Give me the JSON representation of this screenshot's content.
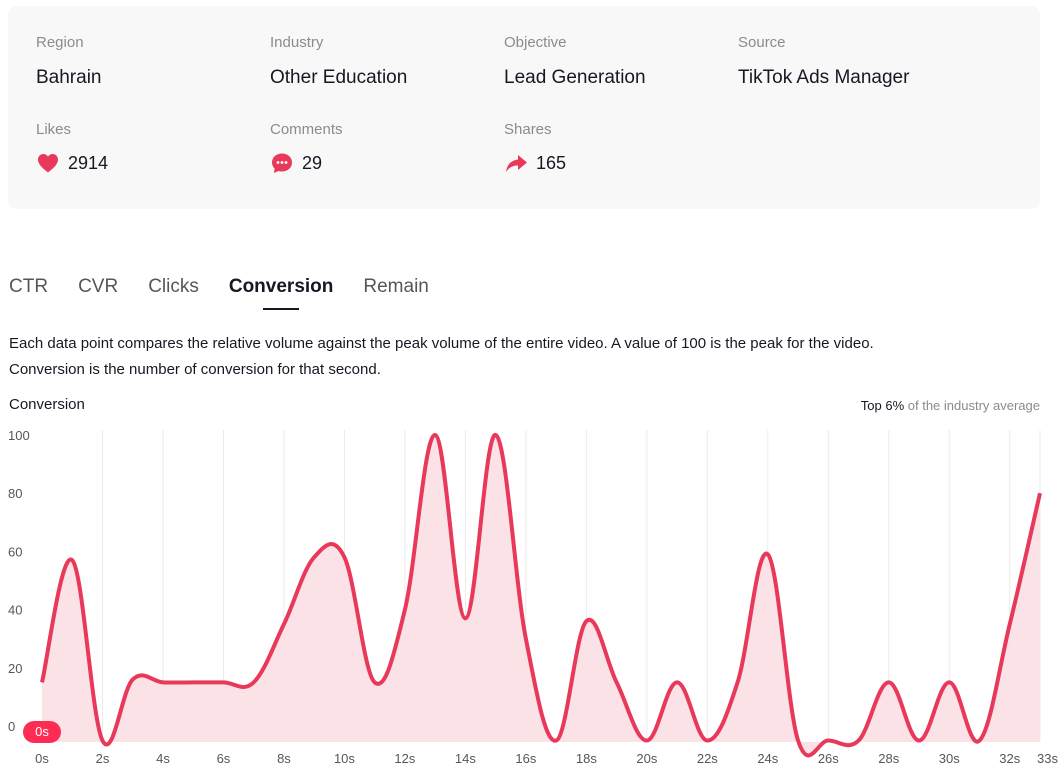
{
  "info": {
    "region": {
      "label": "Region",
      "value": "Bahrain"
    },
    "industry": {
      "label": "Industry",
      "value": "Other Education"
    },
    "objective": {
      "label": "Objective",
      "value": "Lead Generation"
    },
    "source": {
      "label": "Source",
      "value": "TikTok Ads Manager"
    },
    "likes": {
      "label": "Likes",
      "value": "2914",
      "icon": "heart-icon"
    },
    "comments": {
      "label": "Comments",
      "value": "29",
      "icon": "comment-icon"
    },
    "shares": {
      "label": "Shares",
      "value": "165",
      "icon": "share-icon"
    }
  },
  "tabs": [
    {
      "label": "CTR"
    },
    {
      "label": "CVR"
    },
    {
      "label": "Clicks"
    },
    {
      "label": "Conversion",
      "active": true
    },
    {
      "label": "Remain"
    }
  ],
  "description": {
    "line1": "Each data point compares the relative volume against the peak volume of the entire video. A value of 100 is the peak for the video.",
    "line2": "Conversion is the number of conversion for that second."
  },
  "chart_header": {
    "title": "Conversion",
    "rank_top": "Top 6%",
    "rank_rest": " of the industry average"
  },
  "colors": {
    "accent": "#fe2c55",
    "line": "#e8395a",
    "fill": "#f9dfe4",
    "grid": "#ebebeb"
  },
  "chart_data": {
    "type": "area",
    "x": [
      0,
      1,
      2,
      3,
      4,
      5,
      6,
      7,
      8,
      9,
      10,
      11,
      12,
      13,
      14,
      15,
      16,
      17,
      18,
      19,
      20,
      21,
      22,
      23,
      24,
      25,
      26,
      27,
      28,
      29,
      30,
      31,
      32,
      33
    ],
    "values": [
      15,
      57,
      -5,
      16,
      15,
      15,
      15,
      15,
      35,
      58,
      58,
      15,
      40,
      100,
      37,
      100,
      30,
      -5,
      36,
      15,
      -5,
      15,
      -5,
      15,
      59,
      -5,
      -5,
      -5,
      15,
      -5,
      15,
      -5,
      35,
      80
    ],
    "ylim": [
      -5,
      100
    ],
    "xlim": [
      0,
      33
    ],
    "y_ticks": [
      "0",
      "20",
      "40",
      "60",
      "80",
      "100"
    ],
    "y_tick_values": [
      0,
      20,
      40,
      60,
      80,
      100
    ],
    "x_ticks": [
      "0s",
      "2s",
      "4s",
      "6s",
      "8s",
      "10s",
      "12s",
      "14s",
      "16s",
      "18s",
      "20s",
      "22s",
      "24s",
      "26s",
      "28s",
      "30s",
      "32s",
      "33s"
    ],
    "x_tick_values": [
      0,
      2,
      4,
      6,
      8,
      10,
      12,
      14,
      16,
      18,
      20,
      22,
      24,
      26,
      28,
      30,
      32,
      33
    ],
    "current_time_label": "0s",
    "grid": true
  }
}
